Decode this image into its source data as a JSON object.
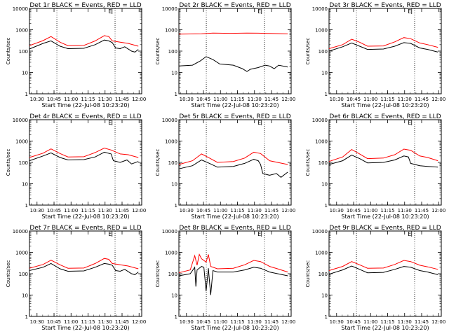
{
  "chart_data": {
    "type": "line",
    "yscale": "log",
    "ylim": [
      1,
      10000
    ],
    "ylabel": "Counts/sec",
    "xlabel": "Start Time (22-Jul-08 10:23:20)",
    "xticks": [
      "10:30",
      "10:45",
      "11:00",
      "11:15",
      "11:30",
      "11:45",
      "12:00"
    ],
    "yticks": [
      "1",
      "10",
      "100",
      "1000",
      "10000"
    ],
    "xrange_minutes": [
      10.33,
      10.37
    ],
    "marker_label": "E",
    "colors": {
      "events": "#000000",
      "lld": "#ff0000",
      "guides": "#000000"
    },
    "series_names": {
      "events": "Events",
      "lld": "LLD"
    },
    "x_minutes_note": "x in minutes after 10:23:20",
    "panels": [
      {
        "title": "Det 1r BLACK = Events, RED = LLD",
        "lld": [
          [
            0,
            180
          ],
          [
            12,
            310
          ],
          [
            19,
            480
          ],
          [
            27,
            260
          ],
          [
            34,
            180
          ],
          [
            48,
            185
          ],
          [
            58,
            300
          ],
          [
            66,
            530
          ],
          [
            70,
            480
          ],
          [
            73,
            300
          ],
          [
            80,
            260
          ],
          [
            87,
            230
          ],
          [
            96,
            170
          ]
        ],
        "events": [
          [
            0,
            125
          ],
          [
            12,
            230
          ],
          [
            19,
            300
          ],
          [
            27,
            170
          ],
          [
            34,
            130
          ],
          [
            48,
            135
          ],
          [
            58,
            200
          ],
          [
            66,
            330
          ],
          [
            70,
            300
          ],
          [
            73,
            250
          ],
          [
            76,
            140
          ],
          [
            80,
            130
          ],
          [
            84,
            160
          ],
          [
            90,
            100
          ],
          [
            93,
            90
          ],
          [
            96,
            120
          ]
        ]
      },
      {
        "title": "Det 2r BLACK = Events, RED = LLD",
        "lld": [
          [
            0,
            620
          ],
          [
            20,
            650
          ],
          [
            30,
            700
          ],
          [
            45,
            680
          ],
          [
            60,
            700
          ],
          [
            70,
            690
          ],
          [
            80,
            670
          ],
          [
            96,
            640
          ]
        ],
        "events": [
          [
            0,
            20
          ],
          [
            12,
            22
          ],
          [
            19,
            35
          ],
          [
            24,
            55
          ],
          [
            30,
            40
          ],
          [
            36,
            25
          ],
          [
            48,
            22
          ],
          [
            56,
            15
          ],
          [
            60,
            11
          ],
          [
            63,
            14
          ],
          [
            70,
            17
          ],
          [
            76,
            22
          ],
          [
            80,
            20
          ],
          [
            84,
            15
          ],
          [
            88,
            22
          ],
          [
            96,
            18
          ]
        ]
      },
      {
        "title": "Det 3r BLACK = Events, RED = LLD",
        "lld": [
          [
            0,
            130
          ],
          [
            12,
            200
          ],
          [
            20,
            360
          ],
          [
            27,
            260
          ],
          [
            34,
            170
          ],
          [
            48,
            175
          ],
          [
            58,
            270
          ],
          [
            66,
            430
          ],
          [
            72,
            380
          ],
          [
            80,
            240
          ],
          [
            87,
            200
          ],
          [
            96,
            150
          ]
        ],
        "events": [
          [
            0,
            100
          ],
          [
            12,
            160
          ],
          [
            20,
            240
          ],
          [
            27,
            170
          ],
          [
            34,
            120
          ],
          [
            48,
            125
          ],
          [
            58,
            170
          ],
          [
            66,
            250
          ],
          [
            72,
            230
          ],
          [
            80,
            140
          ],
          [
            87,
            120
          ],
          [
            96,
            90
          ]
        ]
      },
      {
        "title": "Det 4r BLACK = Events, RED = LLD",
        "lld": [
          [
            0,
            170
          ],
          [
            12,
            270
          ],
          [
            19,
            430
          ],
          [
            27,
            260
          ],
          [
            34,
            180
          ],
          [
            48,
            185
          ],
          [
            58,
            290
          ],
          [
            66,
            470
          ],
          [
            72,
            380
          ],
          [
            80,
            250
          ],
          [
            87,
            230
          ],
          [
            96,
            170
          ]
        ],
        "events": [
          [
            0,
            120
          ],
          [
            12,
            200
          ],
          [
            19,
            280
          ],
          [
            27,
            170
          ],
          [
            34,
            130
          ],
          [
            48,
            135
          ],
          [
            58,
            180
          ],
          [
            66,
            300
          ],
          [
            72,
            250
          ],
          [
            74,
            120
          ],
          [
            80,
            100
          ],
          [
            86,
            130
          ],
          [
            90,
            85
          ],
          [
            96,
            110
          ]
        ]
      },
      {
        "title": "Det 5r BLACK = Events, RED = LLD",
        "lld": [
          [
            0,
            80
          ],
          [
            12,
            120
          ],
          [
            20,
            250
          ],
          [
            27,
            160
          ],
          [
            34,
            100
          ],
          [
            48,
            110
          ],
          [
            58,
            160
          ],
          [
            66,
            300
          ],
          [
            72,
            260
          ],
          [
            80,
            120
          ],
          [
            87,
            100
          ],
          [
            96,
            80
          ]
        ],
        "events": [
          [
            0,
            50
          ],
          [
            12,
            70
          ],
          [
            20,
            130
          ],
          [
            27,
            90
          ],
          [
            34,
            60
          ],
          [
            48,
            65
          ],
          [
            58,
            90
          ],
          [
            66,
            140
          ],
          [
            70,
            120
          ],
          [
            72,
            80
          ],
          [
            74,
            30
          ],
          [
            80,
            25
          ],
          [
            86,
            30
          ],
          [
            90,
            20
          ],
          [
            96,
            35
          ]
        ]
      },
      {
        "title": "Det 6r BLACK = Events, RED = LLD",
        "lld": [
          [
            0,
            110
          ],
          [
            12,
            180
          ],
          [
            20,
            400
          ],
          [
            27,
            250
          ],
          [
            34,
            150
          ],
          [
            48,
            160
          ],
          [
            58,
            230
          ],
          [
            66,
            420
          ],
          [
            72,
            370
          ],
          [
            80,
            200
          ],
          [
            87,
            170
          ],
          [
            96,
            120
          ]
        ],
        "events": [
          [
            0,
            80
          ],
          [
            12,
            120
          ],
          [
            20,
            220
          ],
          [
            27,
            150
          ],
          [
            34,
            95
          ],
          [
            48,
            100
          ],
          [
            58,
            130
          ],
          [
            66,
            200
          ],
          [
            70,
            180
          ],
          [
            72,
            90
          ],
          [
            80,
            70
          ],
          [
            87,
            65
          ],
          [
            96,
            60
          ]
        ]
      },
      {
        "title": "Det 7r BLACK = Events, RED = LLD",
        "lld": [
          [
            0,
            180
          ],
          [
            12,
            270
          ],
          [
            19,
            430
          ],
          [
            27,
            260
          ],
          [
            34,
            180
          ],
          [
            48,
            185
          ],
          [
            58,
            300
          ],
          [
            66,
            520
          ],
          [
            70,
            470
          ],
          [
            73,
            300
          ],
          [
            80,
            260
          ],
          [
            87,
            230
          ],
          [
            96,
            170
          ]
        ],
        "events": [
          [
            0,
            140
          ],
          [
            12,
            200
          ],
          [
            19,
            300
          ],
          [
            27,
            170
          ],
          [
            34,
            130
          ],
          [
            48,
            135
          ],
          [
            58,
            200
          ],
          [
            66,
            300
          ],
          [
            70,
            280
          ],
          [
            73,
            250
          ],
          [
            76,
            140
          ],
          [
            80,
            130
          ],
          [
            84,
            160
          ],
          [
            90,
            100
          ],
          [
            93,
            90
          ],
          [
            96,
            120
          ]
        ]
      },
      {
        "title": "Det 8r BLACK = Events, RED = LLD",
        "lld": [
          [
            0,
            110
          ],
          [
            10,
            150
          ],
          [
            14,
            700
          ],
          [
            16,
            250
          ],
          [
            18,
            800
          ],
          [
            20,
            500
          ],
          [
            24,
            350
          ],
          [
            26,
            800
          ],
          [
            28,
            220
          ],
          [
            34,
            170
          ],
          [
            48,
            180
          ],
          [
            58,
            260
          ],
          [
            66,
            420
          ],
          [
            72,
            370
          ],
          [
            80,
            220
          ],
          [
            87,
            170
          ],
          [
            96,
            120
          ]
        ],
        "events": [
          [
            0,
            80
          ],
          [
            10,
            100
          ],
          [
            14,
            200
          ],
          [
            15,
            25
          ],
          [
            16,
            150
          ],
          [
            20,
            220
          ],
          [
            22,
            200
          ],
          [
            24,
            15
          ],
          [
            26,
            180
          ],
          [
            28,
            10
          ],
          [
            30,
            140
          ],
          [
            34,
            120
          ],
          [
            48,
            120
          ],
          [
            58,
            150
          ],
          [
            66,
            200
          ],
          [
            72,
            180
          ],
          [
            80,
            120
          ],
          [
            87,
            100
          ],
          [
            96,
            80
          ]
        ]
      },
      {
        "title": "Det 9r BLACK = Events, RED = LLD",
        "lld": [
          [
            0,
            140
          ],
          [
            12,
            220
          ],
          [
            20,
            370
          ],
          [
            27,
            260
          ],
          [
            34,
            180
          ],
          [
            48,
            185
          ],
          [
            58,
            270
          ],
          [
            66,
            420
          ],
          [
            72,
            370
          ],
          [
            80,
            250
          ],
          [
            87,
            210
          ],
          [
            96,
            160
          ]
        ],
        "events": [
          [
            0,
            95
          ],
          [
            12,
            150
          ],
          [
            20,
            230
          ],
          [
            27,
            160
          ],
          [
            34,
            110
          ],
          [
            48,
            115
          ],
          [
            58,
            160
          ],
          [
            66,
            220
          ],
          [
            72,
            200
          ],
          [
            80,
            140
          ],
          [
            87,
            120
          ],
          [
            96,
            90
          ]
        ]
      }
    ]
  }
}
